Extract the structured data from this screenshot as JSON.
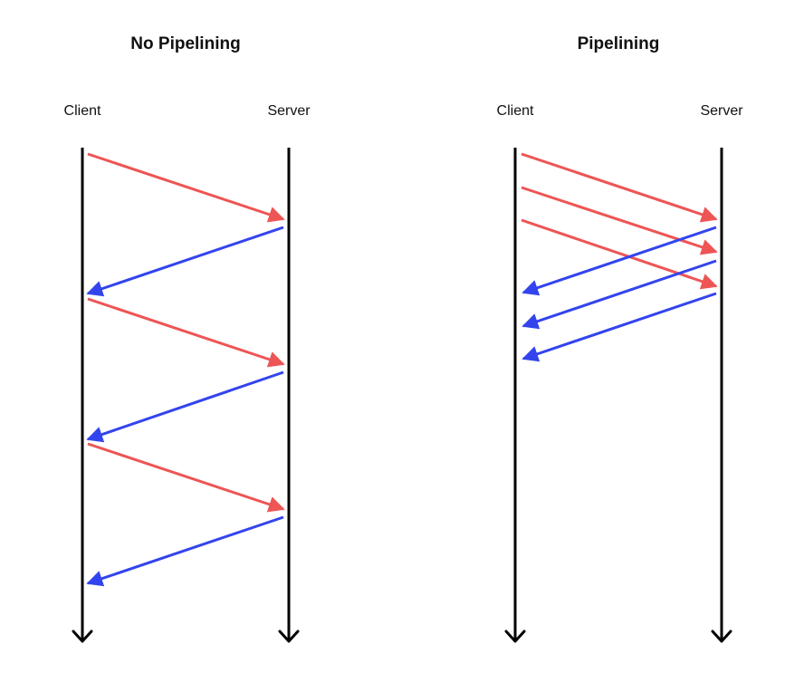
{
  "colors": {
    "request": "#ee5555",
    "response": "#3344ee",
    "timeline": "#000000"
  },
  "panels": [
    {
      "title": "No Pipelining",
      "client_label": "Client",
      "server_label": "Server",
      "messages": [
        {
          "kind": "request",
          "direction": "client-to-server"
        },
        {
          "kind": "response",
          "direction": "server-to-client"
        },
        {
          "kind": "request",
          "direction": "client-to-server"
        },
        {
          "kind": "response",
          "direction": "server-to-client"
        },
        {
          "kind": "request",
          "direction": "client-to-server"
        },
        {
          "kind": "response",
          "direction": "server-to-client"
        }
      ]
    },
    {
      "title": "Pipelining",
      "client_label": "Client",
      "server_label": "Server",
      "messages": [
        {
          "kind": "request",
          "direction": "client-to-server"
        },
        {
          "kind": "request",
          "direction": "client-to-server"
        },
        {
          "kind": "request",
          "direction": "client-to-server"
        },
        {
          "kind": "response",
          "direction": "server-to-client"
        },
        {
          "kind": "response",
          "direction": "server-to-client"
        },
        {
          "kind": "response",
          "direction": "server-to-client"
        }
      ]
    }
  ]
}
